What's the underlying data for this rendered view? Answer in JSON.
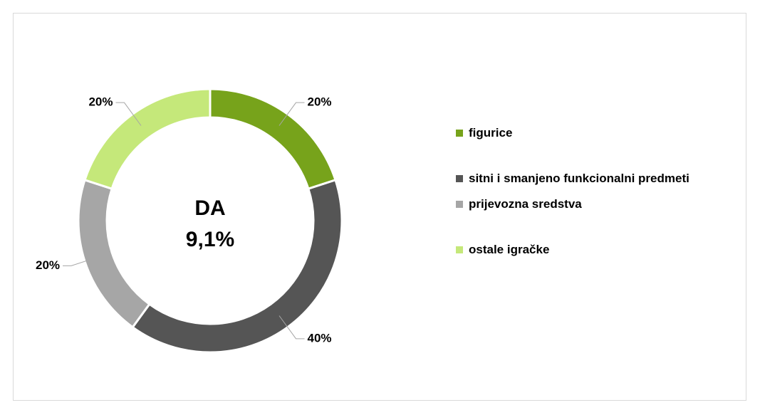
{
  "chart_data": {
    "type": "donut",
    "categories": [
      "figurice",
      "sitni i smanjeno funkcionalni predmeti",
      "prijevozna sredstva",
      "ostale igračke"
    ],
    "values": [
      20,
      40,
      20,
      20
    ],
    "value_labels": [
      "20%",
      "40%",
      "20%",
      "20%"
    ],
    "colors": [
      "#77a31b",
      "#555555",
      "#a6a6a6",
      "#c5e87a"
    ],
    "center_label": [
      "DA",
      "9,1%"
    ],
    "legend": "right"
  }
}
